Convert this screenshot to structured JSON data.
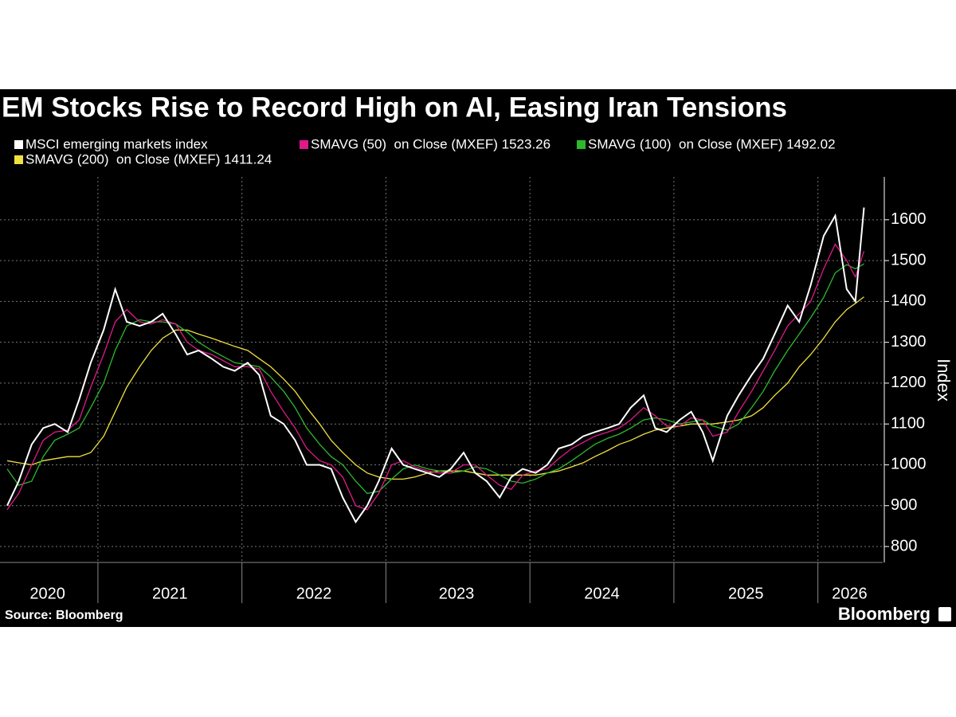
{
  "chart_data": {
    "type": "line",
    "title": "EM Stocks Rise to Record High on AI, Easing Iran Tensions",
    "x": [
      2020.37,
      2020.45,
      2020.54,
      2020.62,
      2020.7,
      2020.79,
      2020.87,
      2020.95,
      2021.04,
      2021.12,
      2021.2,
      2021.29,
      2021.37,
      2021.45,
      2021.54,
      2021.62,
      2021.7,
      2021.79,
      2021.87,
      2021.95,
      2022.04,
      2022.12,
      2022.2,
      2022.29,
      2022.37,
      2022.45,
      2022.54,
      2022.62,
      2022.7,
      2022.79,
      2022.87,
      2022.95,
      2023.04,
      2023.12,
      2023.2,
      2023.29,
      2023.37,
      2023.45,
      2023.54,
      2023.62,
      2023.7,
      2023.79,
      2023.87,
      2023.95,
      2024.04,
      2024.12,
      2024.2,
      2024.29,
      2024.37,
      2024.45,
      2024.54,
      2024.62,
      2024.7,
      2024.79,
      2024.87,
      2024.95,
      2025.04,
      2025.12,
      2025.2,
      2025.27,
      2025.37,
      2025.45,
      2025.54,
      2025.62,
      2025.7,
      2025.79,
      2025.87,
      2025.95,
      2026.04,
      2026.12,
      2026.2,
      2026.26,
      2026.32
    ],
    "series": [
      {
        "name": "MSCI emerging markets index",
        "color": "#ffffff",
        "values": [
          900,
          960,
          1050,
          1090,
          1100,
          1080,
          1160,
          1250,
          1330,
          1430,
          1350,
          1340,
          1350,
          1370,
          1320,
          1270,
          1280,
          1260,
          1240,
          1230,
          1250,
          1220,
          1120,
          1100,
          1060,
          1000,
          1000,
          990,
          920,
          860,
          900,
          960,
          1040,
          1000,
          990,
          980,
          970,
          990,
          1030,
          980,
          960,
          920,
          970,
          990,
          980,
          1000,
          1040,
          1050,
          1070,
          1080,
          1090,
          1100,
          1140,
          1170,
          1090,
          1080,
          1110,
          1130,
          1080,
          1010,
          1120,
          1170,
          1220,
          1260,
          1320,
          1390,
          1350,
          1440,
          1560,
          1610,
          1430,
          1400,
          1630
        ]
      },
      {
        "name": "SMAVG (50)  on Close (MXEF) 1523.26",
        "color": "#e0198a",
        "values": [
          890,
          930,
          1000,
          1060,
          1080,
          1085,
          1110,
          1190,
          1270,
          1350,
          1380,
          1350,
          1345,
          1355,
          1345,
          1300,
          1280,
          1270,
          1255,
          1240,
          1240,
          1235,
          1180,
          1130,
          1090,
          1040,
          1010,
          1000,
          970,
          900,
          890,
          930,
          1000,
          1010,
          995,
          985,
          980,
          980,
          1000,
          1000,
          975,
          950,
          940,
          975,
          985,
          990,
          1015,
          1040,
          1055,
          1070,
          1080,
          1090,
          1110,
          1140,
          1120,
          1095,
          1095,
          1115,
          1110,
          1070,
          1080,
          1130,
          1180,
          1230,
          1280,
          1340,
          1370,
          1400,
          1480,
          1540,
          1500,
          1460,
          1523.26
        ]
      },
      {
        "name": "SMAVG (100)  on Close (MXEF) 1492.02",
        "color": "#2db92d",
        "values": [
          990,
          950,
          960,
          1020,
          1060,
          1075,
          1090,
          1140,
          1200,
          1280,
          1340,
          1355,
          1350,
          1350,
          1345,
          1325,
          1300,
          1280,
          1265,
          1250,
          1245,
          1240,
          1215,
          1180,
          1140,
          1090,
          1050,
          1020,
          1000,
          960,
          930,
          935,
          965,
          990,
          1000,
          990,
          985,
          980,
          985,
          995,
          990,
          975,
          960,
          955,
          965,
          980,
          990,
          1010,
          1030,
          1050,
          1065,
          1075,
          1090,
          1110,
          1115,
          1110,
          1100,
          1105,
          1110,
          1095,
          1085,
          1100,
          1140,
          1180,
          1230,
          1280,
          1320,
          1360,
          1410,
          1470,
          1490,
          1480,
          1492.02
        ]
      },
      {
        "name": "SMAVG (200)  on Close (MXEF) 1411.24",
        "color": "#f0e040",
        "values": [
          1010,
          1005,
          1000,
          1010,
          1015,
          1020,
          1020,
          1030,
          1070,
          1130,
          1190,
          1240,
          1280,
          1310,
          1330,
          1330,
          1320,
          1310,
          1300,
          1290,
          1280,
          1260,
          1240,
          1210,
          1180,
          1140,
          1100,
          1060,
          1030,
          1000,
          980,
          970,
          965,
          965,
          970,
          980,
          985,
          985,
          985,
          980,
          975,
          975,
          975,
          975,
          975,
          980,
          985,
          995,
          1005,
          1020,
          1035,
          1050,
          1060,
          1075,
          1085,
          1090,
          1095,
          1100,
          1100,
          1100,
          1105,
          1110,
          1120,
          1140,
          1170,
          1200,
          1240,
          1270,
          1310,
          1350,
          1380,
          1395,
          1411.24
        ]
      }
    ],
    "xlim": [
      2020.32,
      2026.45
    ],
    "xticks": [
      {
        "value": 2020.65,
        "label": "2020"
      },
      {
        "value": 2021.5,
        "label": "2021"
      },
      {
        "value": 2022.5,
        "label": "2022"
      },
      {
        "value": 2023.49,
        "label": "2023"
      },
      {
        "value": 2024.5,
        "label": "2024"
      },
      {
        "value": 2025.5,
        "label": "2025"
      },
      {
        "value": 2026.22,
        "label": "2026"
      }
    ],
    "xgrid": [
      2021,
      2022,
      2023,
      2024,
      2025,
      2026
    ],
    "ylim": [
      761,
      1705
    ],
    "yticks": [
      800,
      900,
      1000,
      1100,
      1200,
      1300,
      1400,
      1500,
      1600
    ],
    "ylabel": "Index",
    "grid": true,
    "source": "Source: Bloomberg",
    "brand": "Bloomberg"
  }
}
